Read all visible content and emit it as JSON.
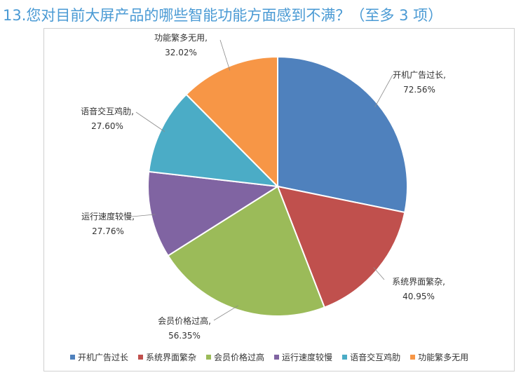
{
  "title": "13.您对目前大屏产品的哪些智能功能方面感到不满？（至多 3 项）",
  "chart_data": {
    "type": "pie",
    "slices": [
      {
        "label": "开机广告过长",
        "value": 72.56,
        "value_text": "72.56%",
        "color": "#4f81bd"
      },
      {
        "label": "系统界面繁杂",
        "value": 40.95,
        "value_text": "40.95%",
        "color": "#c0504d"
      },
      {
        "label": "会员价格过高",
        "value": 56.35,
        "value_text": "56.35%",
        "color": "#9bbb59"
      },
      {
        "label": "运行速度较慢",
        "value": 27.76,
        "value_text": "27.76%",
        "color": "#8064a2"
      },
      {
        "label": "语音交互鸡肋",
        "value": 27.6,
        "value_text": "27.60%",
        "color": "#4bacc6"
      },
      {
        "label": "功能繁多无用",
        "value": 32.02,
        "value_text": "32.02%",
        "color": "#f79646"
      }
    ],
    "legend_position": "bottom"
  }
}
